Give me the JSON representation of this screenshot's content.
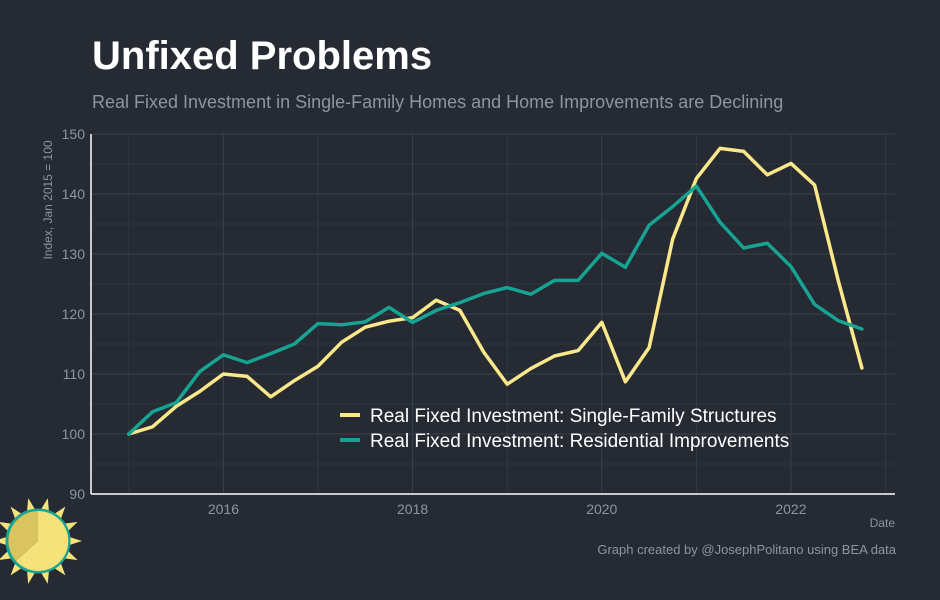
{
  "title": "Unfixed Problems",
  "subtitle": "Real Fixed Investment in Single-Family Homes and Home Improvements are Declining",
  "footer": "Graph created by @JosephPolitano using BEA data",
  "colors": {
    "background": "#252a33",
    "grid": "#3b4049",
    "axis": "#ffffff",
    "tick_text": "#8f959e",
    "single_family": "#fbe88a",
    "residential": "#17a393",
    "logo_sun": "#f6e27a",
    "logo_ring": "#1aa393"
  },
  "chart_data": {
    "type": "line",
    "xlabel": "Date",
    "ylabel": "Index, Jan 2015 = 100",
    "ylim": [
      90,
      150
    ],
    "y_ticks": [
      90,
      100,
      110,
      120,
      130,
      140,
      150
    ],
    "x_ticks": [
      {
        "label": "2016",
        "value": 2016
      },
      {
        "label": "2018",
        "value": 2018
      },
      {
        "label": "2020",
        "value": 2020
      },
      {
        "label": "2022",
        "value": 2022
      }
    ],
    "grid": true,
    "legend_position": "center-right",
    "series": [
      {
        "name": "Real Fixed Investment: Single-Family Structures",
        "color": "#fbe88a",
        "points": [
          [
            "2015-01",
            100.0
          ],
          [
            "2015-04",
            101.2
          ],
          [
            "2015-07",
            104.6
          ],
          [
            "2015-10",
            107.1
          ],
          [
            "2016-01",
            110.0
          ],
          [
            "2016-04",
            109.6
          ],
          [
            "2016-07",
            106.2
          ],
          [
            "2016-10",
            108.9
          ],
          [
            "2017-01",
            111.3
          ],
          [
            "2017-04",
            115.3
          ],
          [
            "2017-07",
            117.8
          ],
          [
            "2017-10",
            118.8
          ],
          [
            "2018-01",
            119.4
          ],
          [
            "2018-04",
            122.3
          ],
          [
            "2018-07",
            120.6
          ],
          [
            "2018-10",
            113.7
          ],
          [
            "2019-01",
            108.3
          ],
          [
            "2019-04",
            110.9
          ],
          [
            "2019-07",
            113.0
          ],
          [
            "2019-10",
            113.9
          ],
          [
            "2020-01",
            118.6
          ],
          [
            "2020-04",
            108.7
          ],
          [
            "2020-07",
            114.4
          ],
          [
            "2020-10",
            132.5
          ],
          [
            "2021-01",
            142.6
          ],
          [
            "2021-04",
            147.6
          ],
          [
            "2021-07",
            147.1
          ],
          [
            "2021-10",
            143.2
          ],
          [
            "2022-01",
            145.1
          ],
          [
            "2022-04",
            141.5
          ],
          [
            "2022-07",
            125.6
          ],
          [
            "2022-10",
            111.0
          ]
        ]
      },
      {
        "name": "Real Fixed Investment: Residential Improvements",
        "color": "#17a393",
        "points": [
          [
            "2015-01",
            100.0
          ],
          [
            "2015-04",
            103.7
          ],
          [
            "2015-07",
            105.2
          ],
          [
            "2015-10",
            110.4
          ],
          [
            "2016-01",
            113.2
          ],
          [
            "2016-04",
            111.9
          ],
          [
            "2016-07",
            113.4
          ],
          [
            "2016-10",
            115.0
          ],
          [
            "2017-01",
            118.4
          ],
          [
            "2017-04",
            118.2
          ],
          [
            "2017-07",
            118.7
          ],
          [
            "2017-10",
            121.1
          ],
          [
            "2018-01",
            118.6
          ],
          [
            "2018-04",
            120.6
          ],
          [
            "2018-07",
            121.9
          ],
          [
            "2018-10",
            123.4
          ],
          [
            "2019-01",
            124.4
          ],
          [
            "2019-04",
            123.3
          ],
          [
            "2019-07",
            125.6
          ],
          [
            "2019-10",
            125.6
          ],
          [
            "2020-01",
            130.1
          ],
          [
            "2020-04",
            127.8
          ],
          [
            "2020-07",
            134.8
          ],
          [
            "2020-10",
            137.9
          ],
          [
            "2021-01",
            141.3
          ],
          [
            "2021-04",
            135.3
          ],
          [
            "2021-07",
            131.0
          ],
          [
            "2021-10",
            131.8
          ],
          [
            "2022-01",
            127.9
          ],
          [
            "2022-04",
            121.6
          ],
          [
            "2022-07",
            118.9
          ],
          [
            "2022-10",
            117.5
          ]
        ]
      }
    ]
  }
}
